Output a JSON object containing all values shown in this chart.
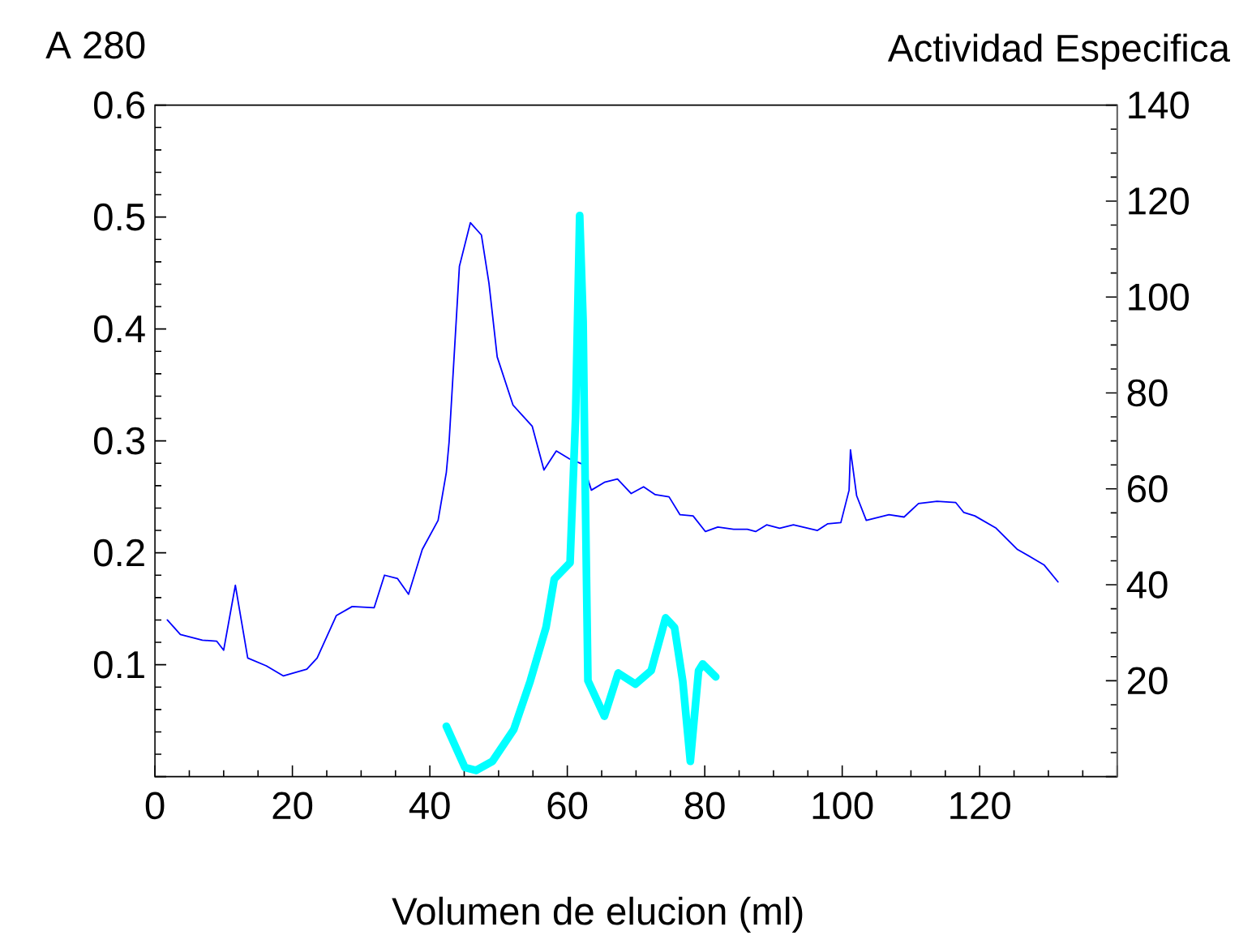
{
  "chart_data": {
    "type": "line",
    "xlabel": "Volumen de elucion (ml)",
    "ylabel": "A 280",
    "y2label": "Actividad Especifica",
    "xlim": [
      0,
      140
    ],
    "xticks": [
      0,
      20,
      40,
      60,
      80,
      100,
      120,
      {
        "value": 140,
        "label": null
      }
    ],
    "ylim": [
      0,
      0.6
    ],
    "yticks": [
      {
        "value": 0,
        "label": null
      },
      0.1,
      0.2,
      0.3,
      0.4,
      0.5,
      0.6
    ],
    "y2lim": [
      0,
      140
    ],
    "y2ticks": [
      {
        "value": 0,
        "label": null
      },
      20,
      40,
      60,
      80,
      100,
      120,
      140
    ],
    "marker": "none",
    "grid": false,
    "series": [
      {
        "color": "#0000ff",
        "axis": "y",
        "x": [
          1.8,
          3.7,
          6.9,
          9.0,
          10.0,
          11.7,
          13.5,
          16.2,
          18.7,
          22.1,
          23.6,
          26.4,
          28.7,
          31.9,
          33.4,
          35.3,
          36.9,
          38.9,
          41.2,
          42.4,
          42.8,
          44.3,
          45.9,
          47.5,
          48.6,
          49.8,
          52.1,
          54.9,
          56.6,
          58.4,
          60.3,
          62.3,
          63.5,
          65.4,
          67.3,
          69.3,
          71.1,
          72.8,
          74.8,
          76.4,
          78.3,
          80.1,
          81.9,
          84.2,
          86.2,
          87.4,
          89.0,
          90.9,
          92.9,
          96.4,
          97.9,
          99.8,
          101.0,
          101.2,
          102.1,
          103.5,
          106.8,
          109.0,
          111.1,
          113.8,
          116.5,
          117.7,
          119.3,
          122.4,
          125.5,
          127.5,
          129.4,
          131.4
        ],
        "values": [
          0.14,
          0.127,
          0.122,
          0.121,
          0.113,
          0.171,
          0.106,
          0.099,
          0.09,
          0.096,
          0.106,
          0.144,
          0.152,
          0.151,
          0.18,
          0.177,
          0.163,
          0.203,
          0.229,
          0.272,
          0.299,
          0.456,
          0.495,
          0.484,
          0.441,
          0.375,
          0.332,
          0.313,
          0.274,
          0.291,
          0.284,
          0.279,
          0.256,
          0.263,
          0.266,
          0.253,
          0.259,
          0.252,
          0.25,
          0.234,
          0.233,
          0.219,
          0.223,
          0.221,
          0.221,
          0.219,
          0.225,
          0.222,
          0.225,
          0.22,
          0.226,
          0.227,
          0.256,
          0.292,
          0.251,
          0.229,
          0.234,
          0.232,
          0.244,
          0.246,
          0.245,
          0.236,
          0.233,
          0.222,
          0.203,
          0.196,
          0.189,
          0.174
        ]
      },
      {
        "color": "#00ffff",
        "axis": "y2",
        "x": [
          42.4,
          45.1,
          46.7,
          49.1,
          52.2,
          54.6,
          56.9,
          58.1,
          60.4,
          61.2,
          61.8,
          62.3,
          62.6,
          63.0,
          65.4,
          67.4,
          69.9,
          72.2,
          74.3,
          75.6,
          76.8,
          77.9,
          79.1,
          79.7,
          81.6
        ],
        "values": [
          10.5,
          1.9,
          1.3,
          3.2,
          9.8,
          19.9,
          31.1,
          41.2,
          44.6,
          75,
          117,
          95,
          61,
          20,
          12.6,
          21.6,
          19.3,
          22.1,
          33.1,
          31.1,
          19.9,
          3.2,
          22.1,
          23.5,
          20.8
        ]
      }
    ]
  }
}
